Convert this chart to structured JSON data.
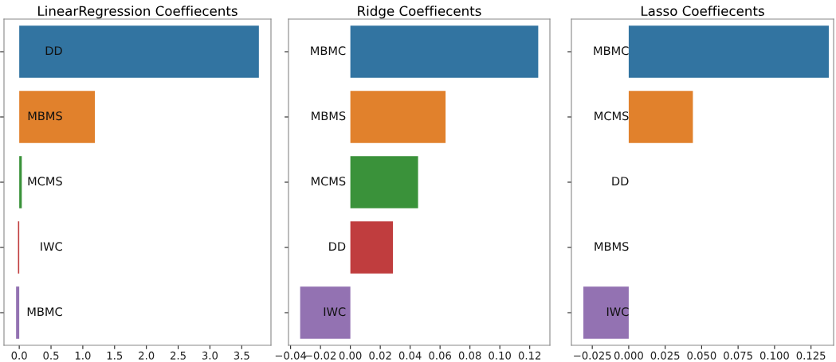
{
  "chart_data": [
    {
      "type": "bar",
      "orientation": "horizontal",
      "title": "LinearRegression Coeffiecents",
      "categories": [
        "DD",
        "MBMS",
        "MCMS",
        "IWC",
        "MBMC"
      ],
      "values": [
        3.77,
        1.19,
        0.04,
        -0.02,
        -0.05
      ],
      "colors": [
        "#3274a1",
        "#e1812c",
        "#3a923a",
        "#c03d3e",
        "#9372b2"
      ],
      "xlim": [
        -0.24,
        3.96
      ],
      "xticks": [
        {
          "value": 0,
          "label": "0.0"
        },
        {
          "value": 0.5,
          "label": "0.5"
        },
        {
          "value": 1,
          "label": "1.0"
        },
        {
          "value": 1.5,
          "label": "1.5"
        },
        {
          "value": 2,
          "label": "2.0"
        },
        {
          "value": 2.5,
          "label": "2.5"
        },
        {
          "value": 3,
          "label": "3.0"
        },
        {
          "value": 3.5,
          "label": "3.5"
        }
      ]
    },
    {
      "type": "bar",
      "orientation": "horizontal",
      "title": "Ridge Coeffiecents",
      "categories": [
        "MBMC",
        "MBMS",
        "MCMS",
        "DD",
        "IWC"
      ],
      "values": [
        0.1257,
        0.0637,
        0.0453,
        0.0285,
        -0.0336
      ],
      "colors": [
        "#3274a1",
        "#e1812c",
        "#3a923a",
        "#c03d3e",
        "#9372b2"
      ],
      "xlim": [
        -0.0414,
        0.1335
      ],
      "xticks": [
        {
          "value": -0.04,
          "label": "−0.04"
        },
        {
          "value": -0.02,
          "label": "−0.02"
        },
        {
          "value": 0,
          "label": "0.00"
        },
        {
          "value": 0.02,
          "label": "0.02"
        },
        {
          "value": 0.04,
          "label": "0.04"
        },
        {
          "value": 0.06,
          "label": "0.06"
        },
        {
          "value": 0.08,
          "label": "0.08"
        },
        {
          "value": 0.1,
          "label": "0.10"
        },
        {
          "value": 0.12,
          "label": "0.12"
        }
      ]
    },
    {
      "type": "bar",
      "orientation": "horizontal",
      "title": "Lasso Coeffiecents",
      "categories": [
        "MBMC",
        "MCMS",
        "DD",
        "MBMS",
        "IWC"
      ],
      "values": [
        0.1372,
        0.044,
        0,
        0,
        -0.0311
      ],
      "colors": [
        "#3274a1",
        "#e1812c",
        "#3a923a",
        "#c03d3e",
        "#9372b2"
      ],
      "xlim": [
        -0.0393,
        0.1405
      ],
      "xticks": [
        {
          "value": -0.025,
          "label": "−0.025"
        },
        {
          "value": 0,
          "label": "0.000"
        },
        {
          "value": 0.025,
          "label": "0.025"
        },
        {
          "value": 0.05,
          "label": "0.050"
        },
        {
          "value": 0.075,
          "label": "0.075"
        },
        {
          "value": 0.1,
          "label": "0.100"
        },
        {
          "value": 0.125,
          "label": "0.125"
        }
      ]
    }
  ]
}
